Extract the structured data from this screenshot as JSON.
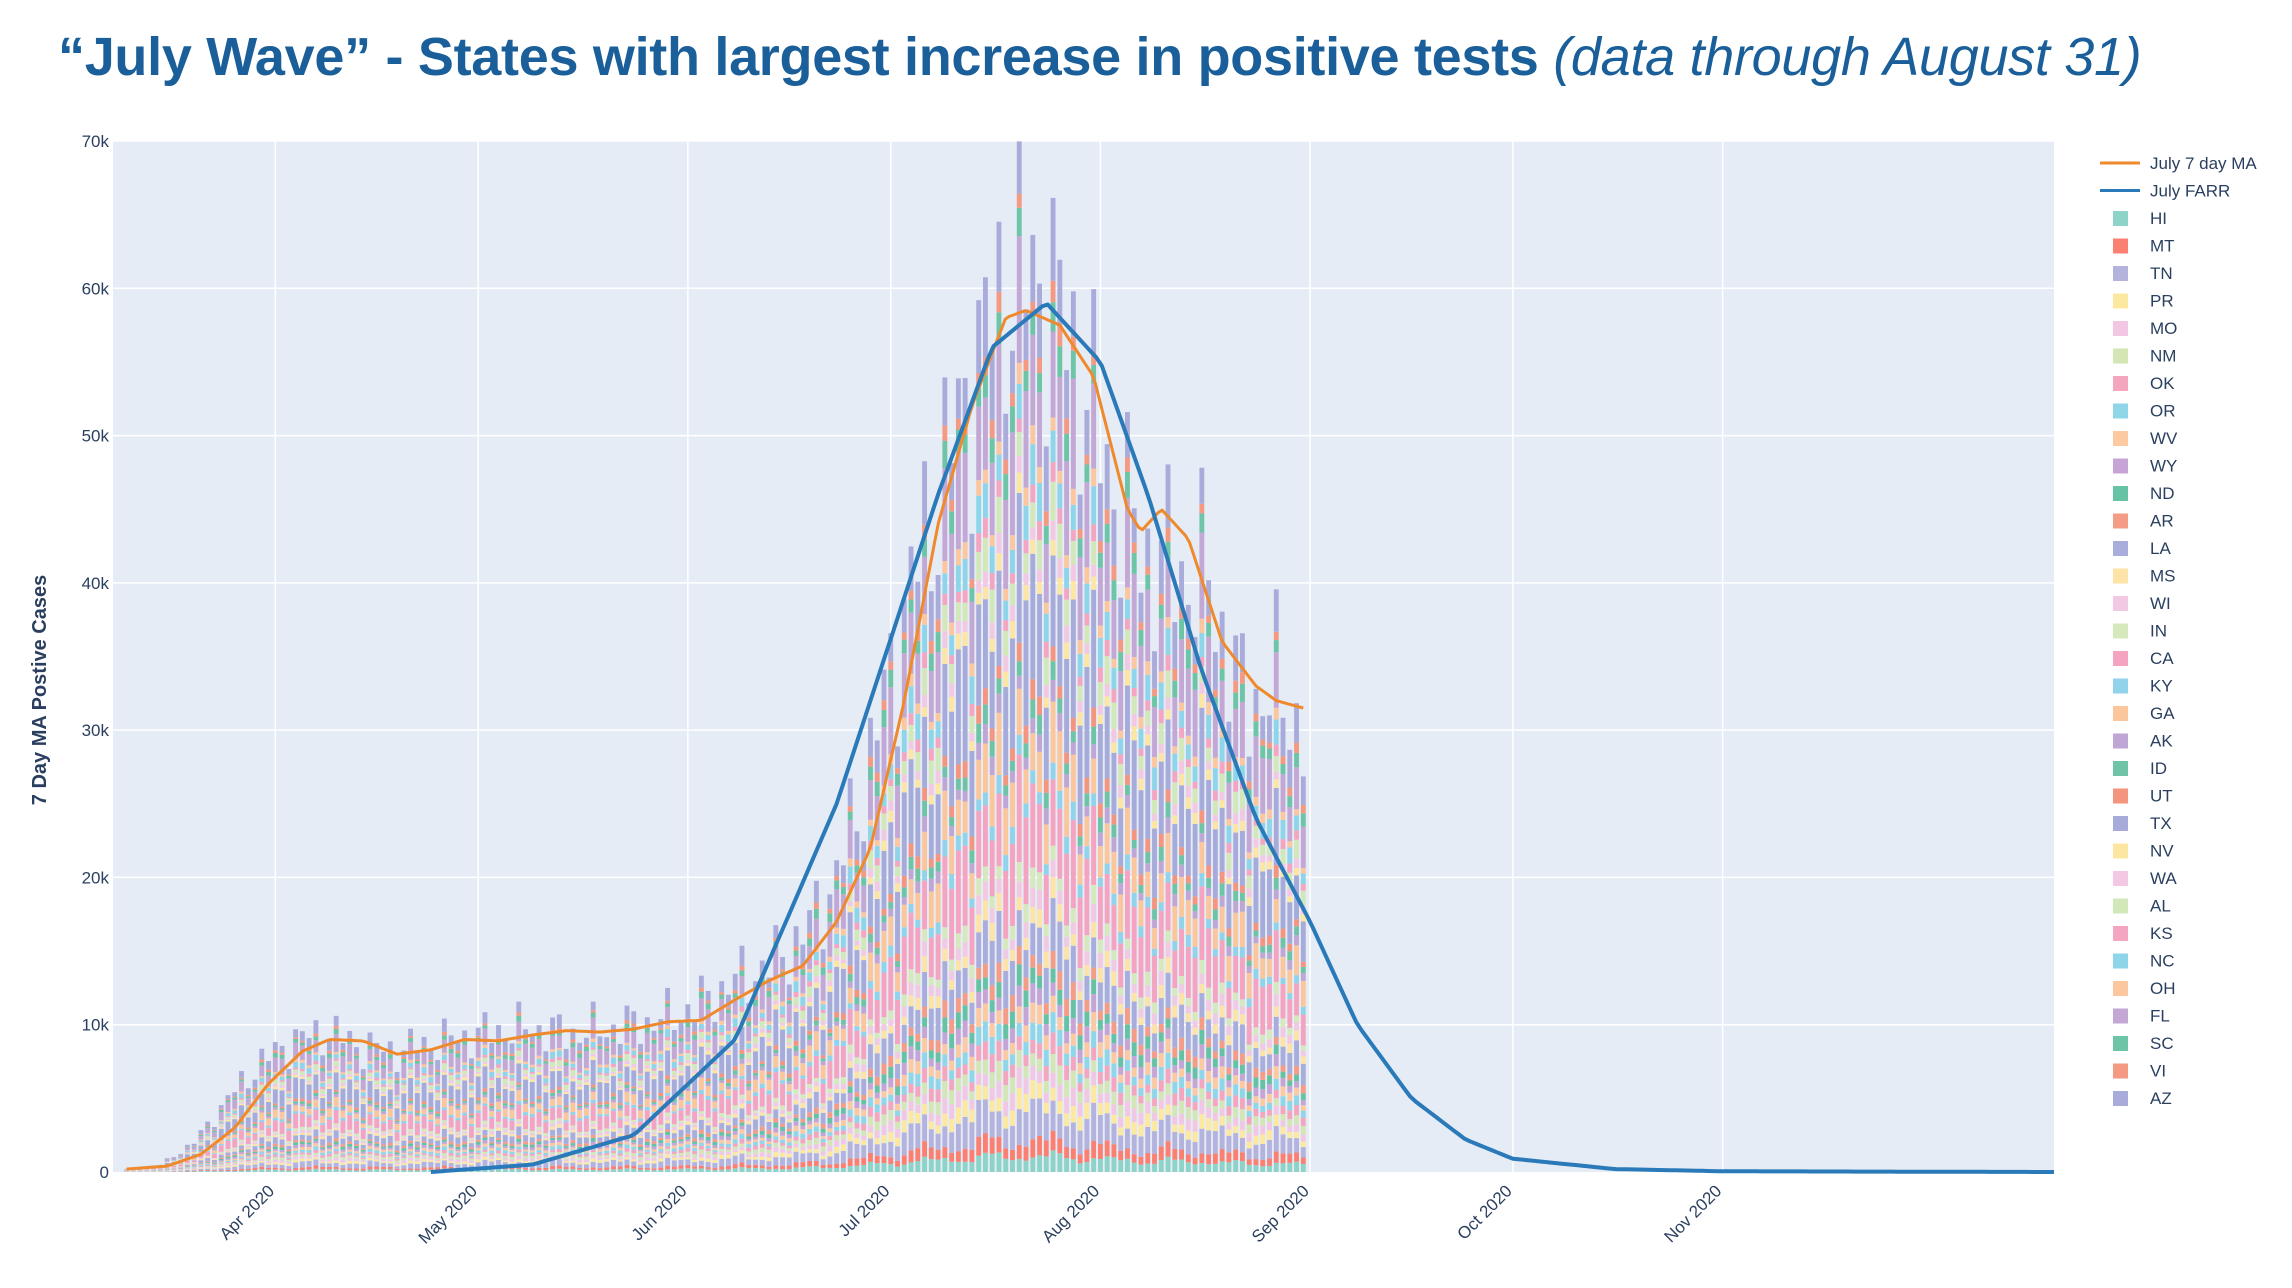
{
  "header": {
    "title_main": "“July Wave” - States with largest increase in positive tests",
    "title_sub": "(data through August 31)"
  },
  "chart_data": {
    "type": "bar",
    "barmode": "stack",
    "title": "“July Wave” - States with largest increase in positive tests (data through August 31)",
    "ylabel": "7 Day MA Postive Cases",
    "xlabel": "",
    "xlim": [
      "2020-03-08",
      "2020-12-20"
    ],
    "ylim": [
      0,
      70000
    ],
    "grid": true,
    "legend_position": "right",
    "y_ticks": [
      0,
      10000,
      20000,
      30000,
      40000,
      50000,
      60000,
      70000
    ],
    "y_tick_labels": [
      "0",
      "10k",
      "20k",
      "30k",
      "40k",
      "50k",
      "60k",
      "70k"
    ],
    "x_ticks": [
      "2020-04-01",
      "2020-05-01",
      "2020-06-01",
      "2020-07-01",
      "2020-08-01",
      "2020-09-01",
      "2020-10-01",
      "2020-11-01"
    ],
    "x_tick_labels": [
      "Apr 2020",
      "May 2020",
      "Jun 2020",
      "Jul 2020",
      "Aug 2020",
      "Sep 2020",
      "Oct 2020",
      "Nov 2020"
    ],
    "daily_totals": {
      "start_date": "2020-03-10",
      "end_date": "2020-08-31",
      "points": [
        [
          "2020-03-10",
          200
        ],
        [
          "2020-03-15",
          500
        ],
        [
          "2020-03-20",
          2000
        ],
        [
          "2020-03-25",
          5000
        ],
        [
          "2020-03-30",
          7500
        ],
        [
          "2020-04-04",
          9000
        ],
        [
          "2020-04-09",
          9500
        ],
        [
          "2020-04-14",
          8500
        ],
        [
          "2020-04-19",
          8200
        ],
        [
          "2020-04-24",
          8800
        ],
        [
          "2020-04-29",
          9200
        ],
        [
          "2020-05-04",
          9600
        ],
        [
          "2020-05-09",
          9800
        ],
        [
          "2020-05-14",
          9400
        ],
        [
          "2020-05-19",
          9700
        ],
        [
          "2020-05-24",
          10000
        ],
        [
          "2020-05-29",
          10500
        ],
        [
          "2020-06-03",
          11500
        ],
        [
          "2020-06-08",
          13000
        ],
        [
          "2020-06-13",
          14000
        ],
        [
          "2020-06-18",
          16000
        ],
        [
          "2020-06-23",
          20000
        ],
        [
          "2020-06-28",
          28000
        ],
        [
          "2020-07-03",
          38000
        ],
        [
          "2020-07-08",
          46000
        ],
        [
          "2020-07-13",
          54000
        ],
        [
          "2020-07-18",
          60000
        ],
        [
          "2020-07-23",
          61000
        ],
        [
          "2020-07-28",
          56000
        ],
        [
          "2020-08-02",
          48000
        ],
        [
          "2020-08-07",
          42000
        ],
        [
          "2020-08-12",
          41000
        ],
        [
          "2020-08-17",
          40000
        ],
        [
          "2020-08-22",
          32000
        ],
        [
          "2020-08-27",
          33000
        ],
        [
          "2020-08-31",
          30000
        ]
      ]
    },
    "series": [
      {
        "name": "July 7 day MA",
        "type": "line",
        "color": "#ef8a2c",
        "points": [
          [
            "2020-03-10",
            200
          ],
          [
            "2020-03-16",
            400
          ],
          [
            "2020-03-21",
            1200
          ],
          [
            "2020-03-26",
            3000
          ],
          [
            "2020-03-31",
            6000
          ],
          [
            "2020-04-05",
            8200
          ],
          [
            "2020-04-09",
            9000
          ],
          [
            "2020-04-14",
            8900
          ],
          [
            "2020-04-19",
            8000
          ],
          [
            "2020-04-24",
            8300
          ],
          [
            "2020-04-29",
            9000
          ],
          [
            "2020-05-04",
            8900
          ],
          [
            "2020-05-09",
            9300
          ],
          [
            "2020-05-14",
            9600
          ],
          [
            "2020-05-19",
            9500
          ],
          [
            "2020-05-24",
            9700
          ],
          [
            "2020-05-29",
            10200
          ],
          [
            "2020-06-03",
            10300
          ],
          [
            "2020-06-08",
            11700
          ],
          [
            "2020-06-13",
            13000
          ],
          [
            "2020-06-18",
            14000
          ],
          [
            "2020-06-23",
            17000
          ],
          [
            "2020-06-28",
            22000
          ],
          [
            "2020-07-03",
            32000
          ],
          [
            "2020-07-08",
            44000
          ],
          [
            "2020-07-13",
            52000
          ],
          [
            "2020-07-18",
            58000
          ],
          [
            "2020-07-21",
            58500
          ],
          [
            "2020-07-26",
            57500
          ],
          [
            "2020-07-31",
            54000
          ],
          [
            "2020-08-05",
            45000
          ],
          [
            "2020-08-07",
            43500
          ],
          [
            "2020-08-10",
            45000
          ],
          [
            "2020-08-14",
            43000
          ],
          [
            "2020-08-19",
            36000
          ],
          [
            "2020-08-24",
            33000
          ],
          [
            "2020-08-27",
            32000
          ],
          [
            "2020-08-31",
            31500
          ]
        ]
      },
      {
        "name": "July FARR",
        "type": "line",
        "color": "#2a7ab9",
        "points": [
          [
            "2020-04-24",
            0
          ],
          [
            "2020-05-09",
            500
          ],
          [
            "2020-05-24",
            2500
          ],
          [
            "2020-06-08",
            9000
          ],
          [
            "2020-06-23",
            25000
          ],
          [
            "2020-07-08",
            46000
          ],
          [
            "2020-07-16",
            56000
          ],
          [
            "2020-07-24",
            59000
          ],
          [
            "2020-08-01",
            55000
          ],
          [
            "2020-08-08",
            46000
          ],
          [
            "2020-08-16",
            34000
          ],
          [
            "2020-08-24",
            24000
          ],
          [
            "2020-09-01",
            17000
          ],
          [
            "2020-09-08",
            10000
          ],
          [
            "2020-09-16",
            5000
          ],
          [
            "2020-09-24",
            2200
          ],
          [
            "2020-10-01",
            900
          ],
          [
            "2020-10-16",
            200
          ],
          [
            "2020-11-01",
            50
          ],
          [
            "2020-12-20",
            0
          ]
        ]
      }
    ],
    "legend": [
      {
        "name": "July 7 day MA",
        "kind": "line",
        "color": "#ef8a2c"
      },
      {
        "name": "July FARR",
        "kind": "line",
        "color": "#2a7ab9"
      },
      {
        "name": "HI",
        "kind": "bar",
        "color": "#8dd3c7"
      },
      {
        "name": "MT",
        "kind": "bar",
        "color": "#fb8072"
      },
      {
        "name": "TN",
        "kind": "bar",
        "color": "#b3b3de"
      },
      {
        "name": "PR",
        "kind": "bar",
        "color": "#fde8a0"
      },
      {
        "name": "MO",
        "kind": "bar",
        "color": "#f2c7e3"
      },
      {
        "name": "NM",
        "kind": "bar",
        "color": "#d4e6b5"
      },
      {
        "name": "OK",
        "kind": "bar",
        "color": "#f4a6bf"
      },
      {
        "name": "OR",
        "kind": "bar",
        "color": "#8fd6e8"
      },
      {
        "name": "WV",
        "kind": "bar",
        "color": "#fcc9a0"
      },
      {
        "name": "WY",
        "kind": "bar",
        "color": "#c6a5d6"
      },
      {
        "name": "ND",
        "kind": "bar",
        "color": "#66c2a5"
      },
      {
        "name": "AR",
        "kind": "bar",
        "color": "#f49c85"
      },
      {
        "name": "LA",
        "kind": "bar",
        "color": "#a9addb"
      },
      {
        "name": "MS",
        "kind": "bar",
        "color": "#fde3a6"
      },
      {
        "name": "WI",
        "kind": "bar",
        "color": "#f1c9e2"
      },
      {
        "name": "IN",
        "kind": "bar",
        "color": "#d6e9bd"
      },
      {
        "name": "CA",
        "kind": "bar",
        "color": "#f4a3c0"
      },
      {
        "name": "KY",
        "kind": "bar",
        "color": "#90d3ea"
      },
      {
        "name": "GA",
        "kind": "bar",
        "color": "#fbc69c"
      },
      {
        "name": "AK",
        "kind": "bar",
        "color": "#c0a6d4"
      },
      {
        "name": "ID",
        "kind": "bar",
        "color": "#6fc4a8"
      },
      {
        "name": "UT",
        "kind": "bar",
        "color": "#f4967f"
      },
      {
        "name": "TX",
        "kind": "bar",
        "color": "#a6abd9"
      },
      {
        "name": "NV",
        "kind": "bar",
        "color": "#fde5a2"
      },
      {
        "name": "WA",
        "kind": "bar",
        "color": "#f2c8e3"
      },
      {
        "name": "AL",
        "kind": "bar",
        "color": "#d3e8b9"
      },
      {
        "name": "KS",
        "kind": "bar",
        "color": "#f4a5c1"
      },
      {
        "name": "NC",
        "kind": "bar",
        "color": "#8ed5ea"
      },
      {
        "name": "OH",
        "kind": "bar",
        "color": "#fcc69e"
      },
      {
        "name": "FL",
        "kind": "bar",
        "color": "#c3a7d5"
      },
      {
        "name": "SC",
        "kind": "bar",
        "color": "#6dc4a6"
      },
      {
        "name": "VI",
        "kind": "bar",
        "color": "#f49982"
      },
      {
        "name": "AZ",
        "kind": "bar",
        "color": "#a9acda"
      }
    ]
  }
}
